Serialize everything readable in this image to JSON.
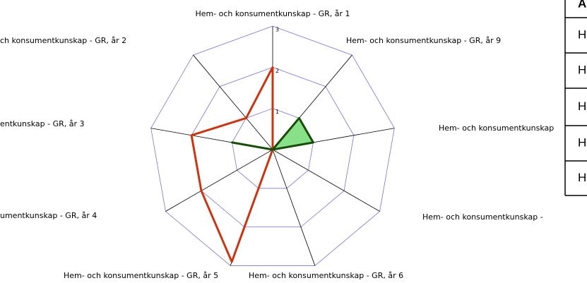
{
  "chart_data": {
    "type": "radar",
    "categories": [
      "Hem- och konsumentkunskap - GR, år 1",
      "Hem- och konsumentkunskap - GR, år 9",
      "Hem- och konsumentkunskap",
      "Hem- och konsumentkunskap -",
      "Hem- och konsumentkunskap - GR, år 6",
      "Hem- och konsumentkunskap - GR, år 5",
      "umentkunskap - GR, år 4",
      "entkunskap - GR, år 3",
      "ch konsumentkunskap - GR, år 2"
    ],
    "series": [
      {
        "color": "#cc3311",
        "values": [
          2,
          0,
          0,
          0,
          0,
          2.9,
          2,
          2,
          1
        ]
      },
      {
        "color": "#1a4d0a",
        "fill": "#88e088",
        "values": [
          0,
          1,
          1,
          0,
          0,
          0,
          0,
          1,
          0
        ]
      }
    ],
    "ylim": [
      0,
      3
    ],
    "yticks": [
      1,
      2,
      3
    ],
    "grid": true
  },
  "table": {
    "header": "A",
    "rows": [
      "H",
      "H",
      "H",
      "H",
      "H"
    ]
  }
}
